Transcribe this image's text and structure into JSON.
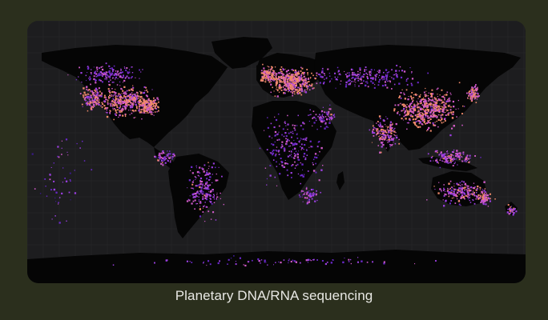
{
  "caption": "Planetary DNA/RNA sequencing",
  "map": {
    "projection": "equirectangular",
    "ocean_color": "#1d1d1f",
    "land_color": "#050505",
    "graticule_color": "#2a2a2d",
    "point_colors": [
      "#3a1a8a",
      "#6a28c9",
      "#9b3fe0",
      "#d05ac8",
      "#f08a6a"
    ],
    "frame_background": "#2b2f1d"
  }
}
